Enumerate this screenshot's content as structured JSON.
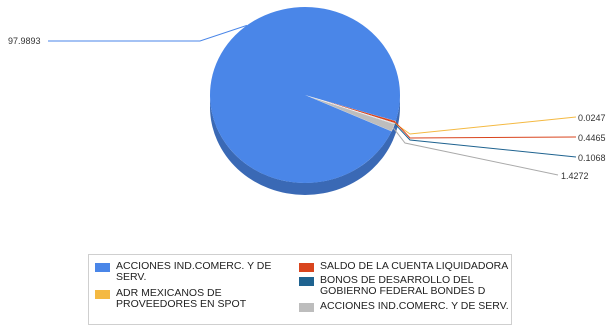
{
  "chart_data": {
    "type": "pie",
    "style": "3d",
    "slices": [
      {
        "label": "ACCIONES IND.COMERC. Y DE SERV.",
        "value": 97.9893,
        "color": "#4a86e8"
      },
      {
        "label": "SALDO DE LA CUENTA LIQUIDADORA",
        "value": 0.4465,
        "color": "#d9451e"
      },
      {
        "label": "ADR MEXICANOS DE PROVEEDORES EN SPOT",
        "value": 0.0247,
        "color": "#f4b942"
      },
      {
        "label": "BONOS DE DESARROLLO DEL GOBIERNO FEDERAL BONDES D",
        "value": 0.1068,
        "color": "#1f6390"
      },
      {
        "label": "ACCIONES IND.COMERC. Y DE SERV.",
        "value": 1.4272,
        "color": "#bdbdbd"
      }
    ],
    "data_labels": [
      "97.9893",
      "0.4465",
      "0.0247",
      "0.1068",
      "1.4272"
    ],
    "legend_position": "bottom"
  }
}
